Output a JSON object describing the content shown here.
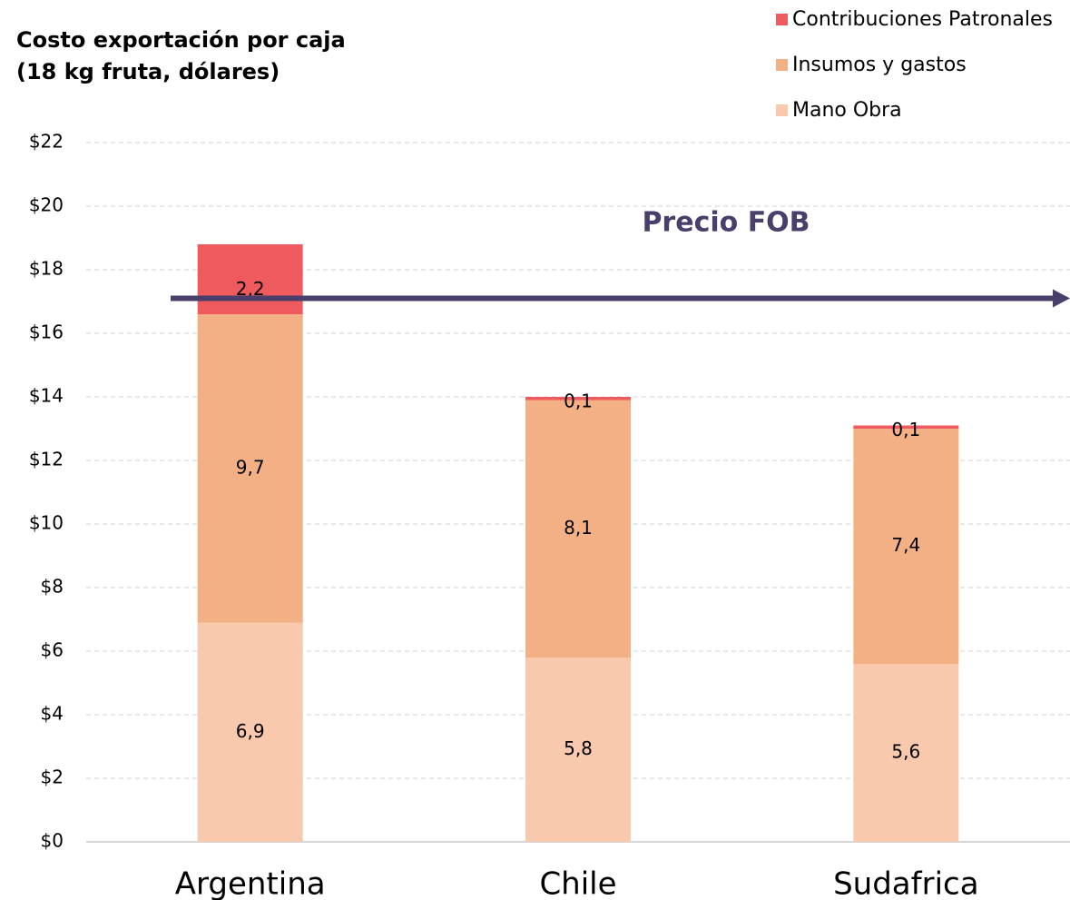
{
  "chart_data": {
    "type": "stacked_bar",
    "title": "Costo exportación por caja",
    "subtitle": "(18 kg fruta, dólares)",
    "categories": [
      "Argentina",
      "Chile",
      "Sudafrica"
    ],
    "series": [
      {
        "name": "Mano Obra",
        "color": "#f8c9ac",
        "values": [
          6.9,
          5.8,
          5.6
        ],
        "value_labels": [
          "6,9",
          "5,8",
          "5,6"
        ]
      },
      {
        "name": "Insumos y gastos",
        "color": "#f3b085",
        "values": [
          9.7,
          8.1,
          7.4
        ],
        "value_labels": [
          "9,7",
          "8,1",
          "7,4"
        ]
      },
      {
        "name": "Contribuciones Patronales",
        "color": "#ef5a5f",
        "values": [
          2.2,
          0.1,
          0.1
        ],
        "value_labels": [
          "2,2",
          "0,1",
          "0,1"
        ]
      }
    ],
    "ylim": [
      0,
      22
    ],
    "yticks": [
      {
        "value": 0,
        "label": "$0"
      },
      {
        "value": 2,
        "label": "$2"
      },
      {
        "value": 4,
        "label": "$4"
      },
      {
        "value": 6,
        "label": "$6"
      },
      {
        "value": 8,
        "label": "$8"
      },
      {
        "value": 10,
        "label": "$10"
      },
      {
        "value": 12,
        "label": "$12"
      },
      {
        "value": 14,
        "label": "$14"
      },
      {
        "value": 16,
        "label": "$16"
      },
      {
        "value": 18,
        "label": "$18"
      },
      {
        "value": 20,
        "label": "$20"
      },
      {
        "value": 22,
        "label": "$22"
      }
    ],
    "grid": true,
    "legend": "top-right",
    "annotation": {
      "text": "Precio FOB",
      "value": 17.1,
      "color": "#4a3f6b"
    }
  }
}
